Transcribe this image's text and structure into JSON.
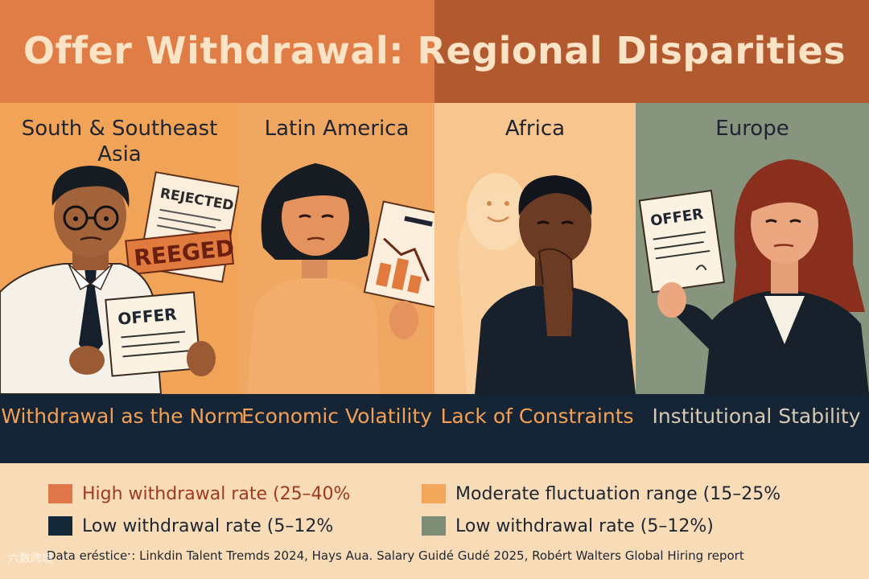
{
  "title": "Offer Withdrawal: Regional Disparities",
  "panels": [
    {
      "region": "South & Southeast Asia",
      "caption": "Withdrawal as the Norm",
      "doc_texts": {
        "rejected": "REJECTED",
        "stamp": "REEGED",
        "offer": "OFFER"
      }
    },
    {
      "region": "Latin America",
      "caption": "Economic Volatility"
    },
    {
      "region": "Africa",
      "caption": "Lack of Constraints"
    },
    {
      "region": "Europe",
      "caption": "Institutional Stability",
      "doc_texts": {
        "offer": "OFFER"
      }
    }
  ],
  "legend": [
    {
      "label": "High withdrawal rate (25–40%",
      "color": "#e0774a"
    },
    {
      "label": "Moderate fluctuation range (15–25%",
      "color": "#f2a65a"
    },
    {
      "label": "Low withdrawal rate (5–12%",
      "color": "#16293a"
    },
    {
      "label": "Low withdrawal rate (5–12%)",
      "color": "#7c8c75"
    }
  ],
  "source": "Data erésticeˑ: Linkdin Talent Tremds 2024, Hays Aua. Salary Guidé Gudé 2025, Robért Walters Global Hiring report",
  "watermark": "六数跨境"
}
